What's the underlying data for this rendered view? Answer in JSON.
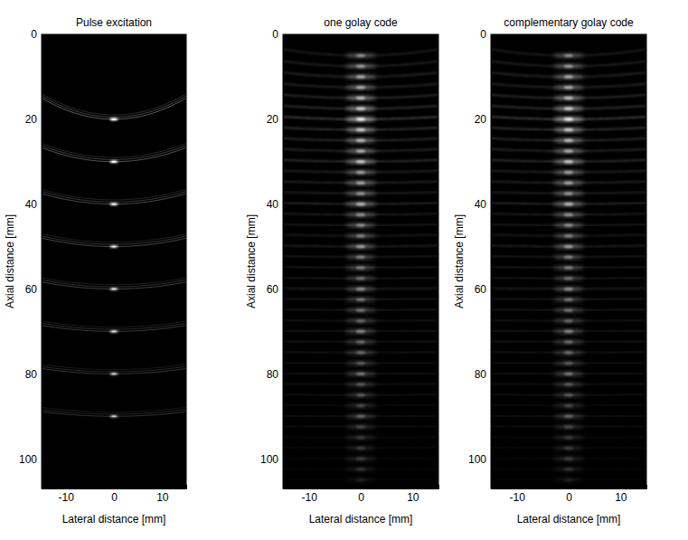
{
  "chart_data": [
    {
      "type": "image",
      "title": "Pulse excitation",
      "x_label": "Lateral distance [mm]",
      "y_label": "Axial distance [mm]",
      "xlim": [
        -15,
        15
      ],
      "ylim": [
        107,
        0
      ],
      "xticks": [
        -10,
        0,
        10
      ],
      "yticks": [
        0,
        20,
        40,
        60,
        80,
        100
      ],
      "marker": "arc",
      "x": [
        0,
        0,
        0,
        0,
        0,
        0,
        0,
        0
      ],
      "y": [
        20,
        30,
        40,
        50,
        60,
        70,
        80,
        90
      ],
      "intensity": [
        1,
        0.9,
        0.8,
        0.75,
        0.7,
        0.65,
        0.6,
        0.55
      ]
    },
    {
      "type": "image",
      "title": "one golay code",
      "x_label": "Lateral distance [mm]",
      "y_label": "Axial distance [mm]",
      "xlim": [
        -15,
        15
      ],
      "ylim": [
        107,
        0
      ],
      "xticks": [
        -10,
        0,
        10
      ],
      "yticks": [
        0,
        20,
        40,
        60,
        80,
        100
      ],
      "marker": "smear",
      "x": [
        0,
        0,
        0,
        0,
        0,
        0,
        0,
        0,
        0,
        0,
        0,
        0,
        0,
        0,
        0,
        0,
        0,
        0,
        0,
        0,
        0,
        0,
        0,
        0,
        0,
        0,
        0,
        0,
        0,
        0,
        0,
        0,
        0,
        0,
        0,
        0,
        0,
        0,
        0,
        0,
        0
      ],
      "y": [
        5,
        7.5,
        10,
        12.5,
        15,
        17.5,
        20,
        22.5,
        25,
        27.5,
        30,
        32.5,
        35,
        37.5,
        40,
        42.5,
        45,
        47.5,
        50,
        52.5,
        55,
        57.5,
        60,
        62.5,
        65,
        67.5,
        70,
        72.5,
        75,
        77.5,
        80,
        82.5,
        85,
        87.5,
        90,
        92.5,
        95,
        97.5,
        100,
        102.5,
        105
      ],
      "intensity": [
        0.5,
        0.55,
        0.6,
        0.6,
        0.7,
        0.8,
        1,
        0.8,
        0.7,
        0.65,
        0.8,
        0.6,
        0.6,
        0.55,
        0.65,
        0.5,
        0.5,
        0.45,
        0.55,
        0.45,
        0.45,
        0.4,
        0.5,
        0.4,
        0.4,
        0.35,
        0.45,
        0.35,
        0.35,
        0.3,
        0.4,
        0.3,
        0.3,
        0.25,
        0.35,
        0.25,
        0.2,
        0.2,
        0.2,
        0.15,
        0.1
      ]
    },
    {
      "type": "image",
      "title": "complementary golay code",
      "x_label": "Lateral distance [mm]",
      "y_label": "Axial distance [mm]",
      "xlim": [
        -15,
        15
      ],
      "ylim": [
        107,
        0
      ],
      "xticks": [
        -10,
        0,
        10
      ],
      "yticks": [
        0,
        20,
        40,
        60,
        80,
        100
      ],
      "marker": "smear",
      "x": [
        0,
        0,
        0,
        0,
        0,
        0,
        0,
        0,
        0,
        0,
        0,
        0,
        0,
        0,
        0,
        0,
        0,
        0,
        0,
        0,
        0,
        0,
        0,
        0,
        0,
        0,
        0,
        0,
        0,
        0,
        0,
        0,
        0,
        0,
        0,
        0,
        0,
        0,
        0,
        0,
        0
      ],
      "y": [
        5,
        7.5,
        10,
        12.5,
        15,
        17.5,
        20,
        22.5,
        25,
        27.5,
        30,
        32.5,
        35,
        37.5,
        40,
        42.5,
        45,
        47.5,
        50,
        52.5,
        55,
        57.5,
        60,
        62.5,
        65,
        67.5,
        70,
        72.5,
        75,
        77.5,
        80,
        82.5,
        85,
        87.5,
        90,
        92.5,
        95,
        97.5,
        100,
        102.5,
        105
      ],
      "intensity": [
        0.5,
        0.55,
        0.6,
        0.6,
        0.7,
        0.8,
        1,
        0.8,
        0.7,
        0.65,
        0.8,
        0.6,
        0.6,
        0.55,
        0.65,
        0.5,
        0.5,
        0.45,
        0.55,
        0.45,
        0.45,
        0.4,
        0.5,
        0.4,
        0.4,
        0.35,
        0.45,
        0.35,
        0.35,
        0.3,
        0.4,
        0.3,
        0.3,
        0.25,
        0.35,
        0.25,
        0.2,
        0.2,
        0.2,
        0.15,
        0.1
      ]
    }
  ]
}
